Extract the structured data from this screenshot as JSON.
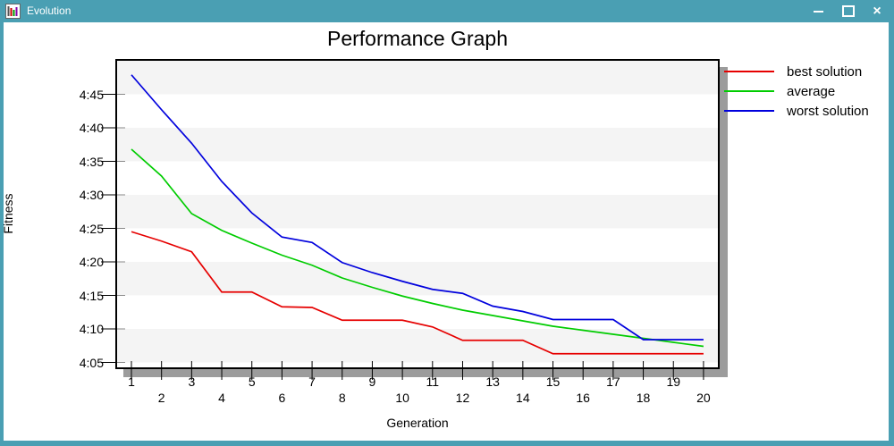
{
  "window": {
    "title": "Evolution",
    "controls": {
      "close_glyph": "×"
    },
    "icons": {
      "minimize": "dash",
      "maximize": "square-outline",
      "close": "x-cross",
      "app": "mini-bar-chart"
    }
  },
  "colors": {
    "titlebar_teal": "#4A9FB3",
    "plot_stripe_gray": "#f4f4f4",
    "plot_shadow_gray": "#9c9c9c",
    "axis_black": "#000000",
    "inner_tick_gray": "#8a8a8a"
  },
  "chart_data": {
    "type": "line",
    "title": "Performance Graph",
    "xlabel": "Generation",
    "ylabel": "Fitness",
    "legend_position": "top-right-outside",
    "grid": "horizontal-stripes-every-5s",
    "x": [
      1,
      2,
      3,
      4,
      5,
      6,
      7,
      8,
      9,
      10,
      11,
      12,
      13,
      14,
      15,
      16,
      17,
      18,
      19,
      20
    ],
    "x_tick_labels": [
      "1",
      "2",
      "3",
      "4",
      "5",
      "6",
      "7",
      "8",
      "9",
      "10",
      "11",
      "12",
      "13",
      "14",
      "15",
      "16",
      "17",
      "18",
      "19",
      "20"
    ],
    "y_ticks": [
      {
        "label": "4:05",
        "seconds": 245
      },
      {
        "label": "4:10",
        "seconds": 250
      },
      {
        "label": "4:15",
        "seconds": 255
      },
      {
        "label": "4:20",
        "seconds": 260
      },
      {
        "label": "4:25",
        "seconds": 265
      },
      {
        "label": "4:30",
        "seconds": 270
      },
      {
        "label": "4:35",
        "seconds": 275
      },
      {
        "label": "4:40",
        "seconds": 280
      },
      {
        "label": "4:45",
        "seconds": 285
      }
    ],
    "y_axis_format": "m:ss",
    "y_range_seconds": [
      244.3,
      290
    ],
    "series": [
      {
        "name": "best solution",
        "color": "#e60000",
        "values": [
          264.5,
          263.1,
          261.5,
          255.5,
          255.5,
          253.3,
          253.2,
          251.3,
          251.3,
          251.3,
          250.3,
          248.3,
          248.3,
          248.3,
          246.3,
          246.3,
          246.3,
          246.3,
          246.3,
          246.3
        ]
      },
      {
        "name": "average",
        "color": "#00cc00",
        "values": [
          276.8,
          272.8,
          267.2,
          264.7,
          262.8,
          261.0,
          259.5,
          257.6,
          256.2,
          254.9,
          253.8,
          252.8,
          252.0,
          251.2,
          250.4,
          249.8,
          249.2,
          248.6,
          248.0,
          247.4
        ]
      },
      {
        "name": "worst solution",
        "color": "#0000dd",
        "values": [
          287.9,
          282.7,
          277.7,
          272.0,
          267.3,
          263.7,
          262.9,
          259.9,
          258.4,
          257.1,
          255.9,
          255.3,
          253.4,
          252.6,
          251.4,
          251.4,
          251.4,
          248.4,
          248.4,
          248.4
        ]
      }
    ]
  }
}
